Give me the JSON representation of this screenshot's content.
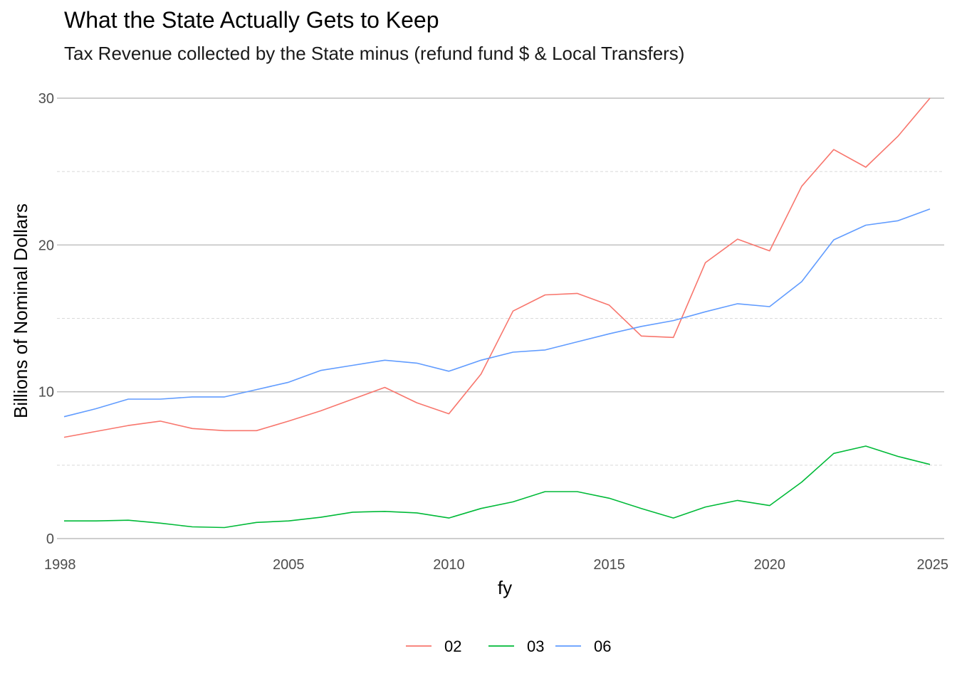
{
  "chart_data": {
    "type": "line",
    "title": "What the State Actually Gets to Keep",
    "subtitle": "Tax Revenue collected by the State minus (refund fund $ & Local Transfers)",
    "xlabel": "fy",
    "ylabel": "Billions of Nominal Dollars",
    "xlim": [
      1998,
      2025
    ],
    "ylim": [
      0,
      30
    ],
    "x_ticks": [
      1998,
      2005,
      2010,
      2015,
      2020,
      2025
    ],
    "y_ticks": [
      0,
      10,
      20,
      30
    ],
    "grid": true,
    "legend_position": "bottom",
    "x": [
      1998,
      1999,
      2000,
      2001,
      2002,
      2003,
      2004,
      2005,
      2006,
      2007,
      2008,
      2009,
      2010,
      2011,
      2012,
      2013,
      2014,
      2015,
      2016,
      2017,
      2018,
      2019,
      2020,
      2021,
      2022,
      2023,
      2024,
      2025
    ],
    "series": [
      {
        "name": "02",
        "color": "#F8766D",
        "values": [
          6.9,
          7.3,
          7.7,
          8.0,
          7.5,
          7.35,
          7.35,
          8.0,
          8.7,
          9.5,
          10.3,
          9.25,
          8.5,
          11.2,
          15.5,
          16.6,
          16.7,
          15.9,
          13.8,
          13.7,
          18.8,
          20.4,
          19.6,
          24.0,
          26.5,
          25.3,
          27.4,
          30.0
        ]
      },
      {
        "name": "03",
        "color": "#00BA38",
        "values": [
          1.2,
          1.2,
          1.25,
          1.05,
          0.8,
          0.75,
          1.1,
          1.2,
          1.45,
          1.8,
          1.85,
          1.75,
          1.4,
          2.05,
          2.5,
          3.2,
          3.2,
          2.75,
          2.05,
          1.4,
          2.15,
          2.6,
          2.25,
          3.85,
          5.8,
          6.3,
          5.6,
          5.05
        ]
      },
      {
        "name": "06",
        "color": "#619CFF",
        "values": [
          8.3,
          8.85,
          9.5,
          9.5,
          9.65,
          9.65,
          10.15,
          10.65,
          11.45,
          11.8,
          12.15,
          11.95,
          11.4,
          12.15,
          12.7,
          12.85,
          13.4,
          13.95,
          14.45,
          14.85,
          15.45,
          16.0,
          15.8,
          17.5,
          20.35,
          21.35,
          21.65,
          22.45
        ]
      }
    ]
  }
}
